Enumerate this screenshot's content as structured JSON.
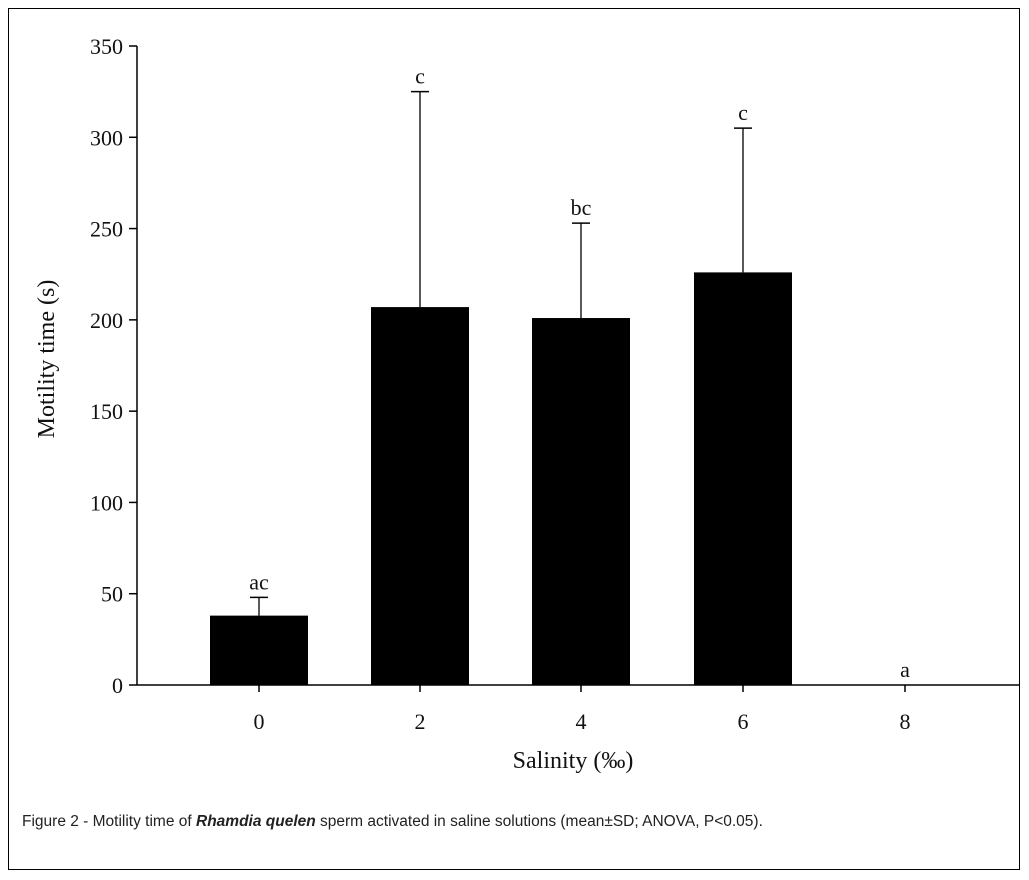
{
  "chart_data": {
    "type": "bar",
    "categories": [
      "0",
      "2",
      "4",
      "6",
      "8"
    ],
    "series": [
      {
        "values": [
          38,
          207,
          201,
          226,
          0
        ],
        "error": [
          10,
          118,
          52,
          79,
          0
        ],
        "significance_labels": [
          "ac",
          "c",
          "bc",
          "c",
          "a"
        ]
      }
    ],
    "xlabel": "Salinity (‰)",
    "ylabel": "Motility time (s)",
    "ylim": [
      0,
      350
    ],
    "yticks": [
      "0",
      "50",
      "100",
      "150",
      "200",
      "250",
      "300",
      "350"
    ],
    "bar_color": "#000000",
    "grid": false,
    "legend": "none"
  },
  "caption": {
    "prefix": "Figure 2 - Motility time of ",
    "species": "Rhamdia quelen",
    "suffix": " sperm activated in saline solutions (mean±SD; ANOVA, P<0.05)."
  }
}
